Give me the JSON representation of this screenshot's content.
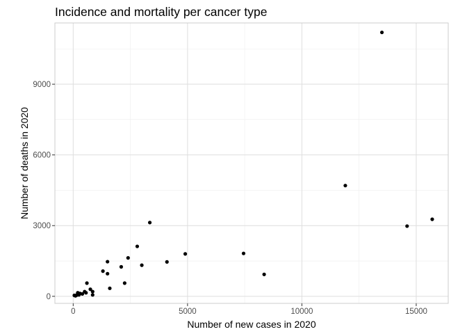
{
  "chart_data": {
    "type": "scatter",
    "title": "Incidence and mortality per cancer type",
    "xlabel": "Number of new cases in 2020",
    "ylabel": "Number of deaths in 2020",
    "xlim": [
      -800,
      16400
    ],
    "ylim": [
      -300,
      11600
    ],
    "x_ticks": [
      0,
      5000,
      10000,
      15000
    ],
    "x_tick_labels": [
      "0",
      "5000",
      "10000",
      "15000"
    ],
    "y_ticks": [
      0,
      3000,
      6000,
      9000
    ],
    "y_tick_labels": [
      "0",
      "3000",
      "6000",
      "9000"
    ],
    "grid": true,
    "legend": "none",
    "point_color": "#000000",
    "points": [
      {
        "x": 13500,
        "y": 11200
      },
      {
        "x": 11900,
        "y": 4700
      },
      {
        "x": 14600,
        "y": 2980
      },
      {
        "x": 15700,
        "y": 3270
      },
      {
        "x": 3350,
        "y": 3130
      },
      {
        "x": 2800,
        "y": 2120
      },
      {
        "x": 2400,
        "y": 1630
      },
      {
        "x": 2100,
        "y": 1250
      },
      {
        "x": 3000,
        "y": 1320
      },
      {
        "x": 4100,
        "y": 1460
      },
      {
        "x": 4900,
        "y": 1800
      },
      {
        "x": 7450,
        "y": 1820
      },
      {
        "x": 8350,
        "y": 930
      },
      {
        "x": 1500,
        "y": 1470
      },
      {
        "x": 1300,
        "y": 1070
      },
      {
        "x": 1500,
        "y": 960
      },
      {
        "x": 1600,
        "y": 340
      },
      {
        "x": 2250,
        "y": 560
      },
      {
        "x": 600,
        "y": 560
      },
      {
        "x": 750,
        "y": 300
      },
      {
        "x": 850,
        "y": 200
      },
      {
        "x": 850,
        "y": 60
      },
      {
        "x": 500,
        "y": 200
      },
      {
        "x": 400,
        "y": 100
      },
      {
        "x": 200,
        "y": 150
      },
      {
        "x": 150,
        "y": 50
      },
      {
        "x": 100,
        "y": 20
      },
      {
        "x": 50,
        "y": 40
      },
      {
        "x": 250,
        "y": 60
      },
      {
        "x": 300,
        "y": 120
      },
      {
        "x": 560,
        "y": 150
      }
    ]
  }
}
